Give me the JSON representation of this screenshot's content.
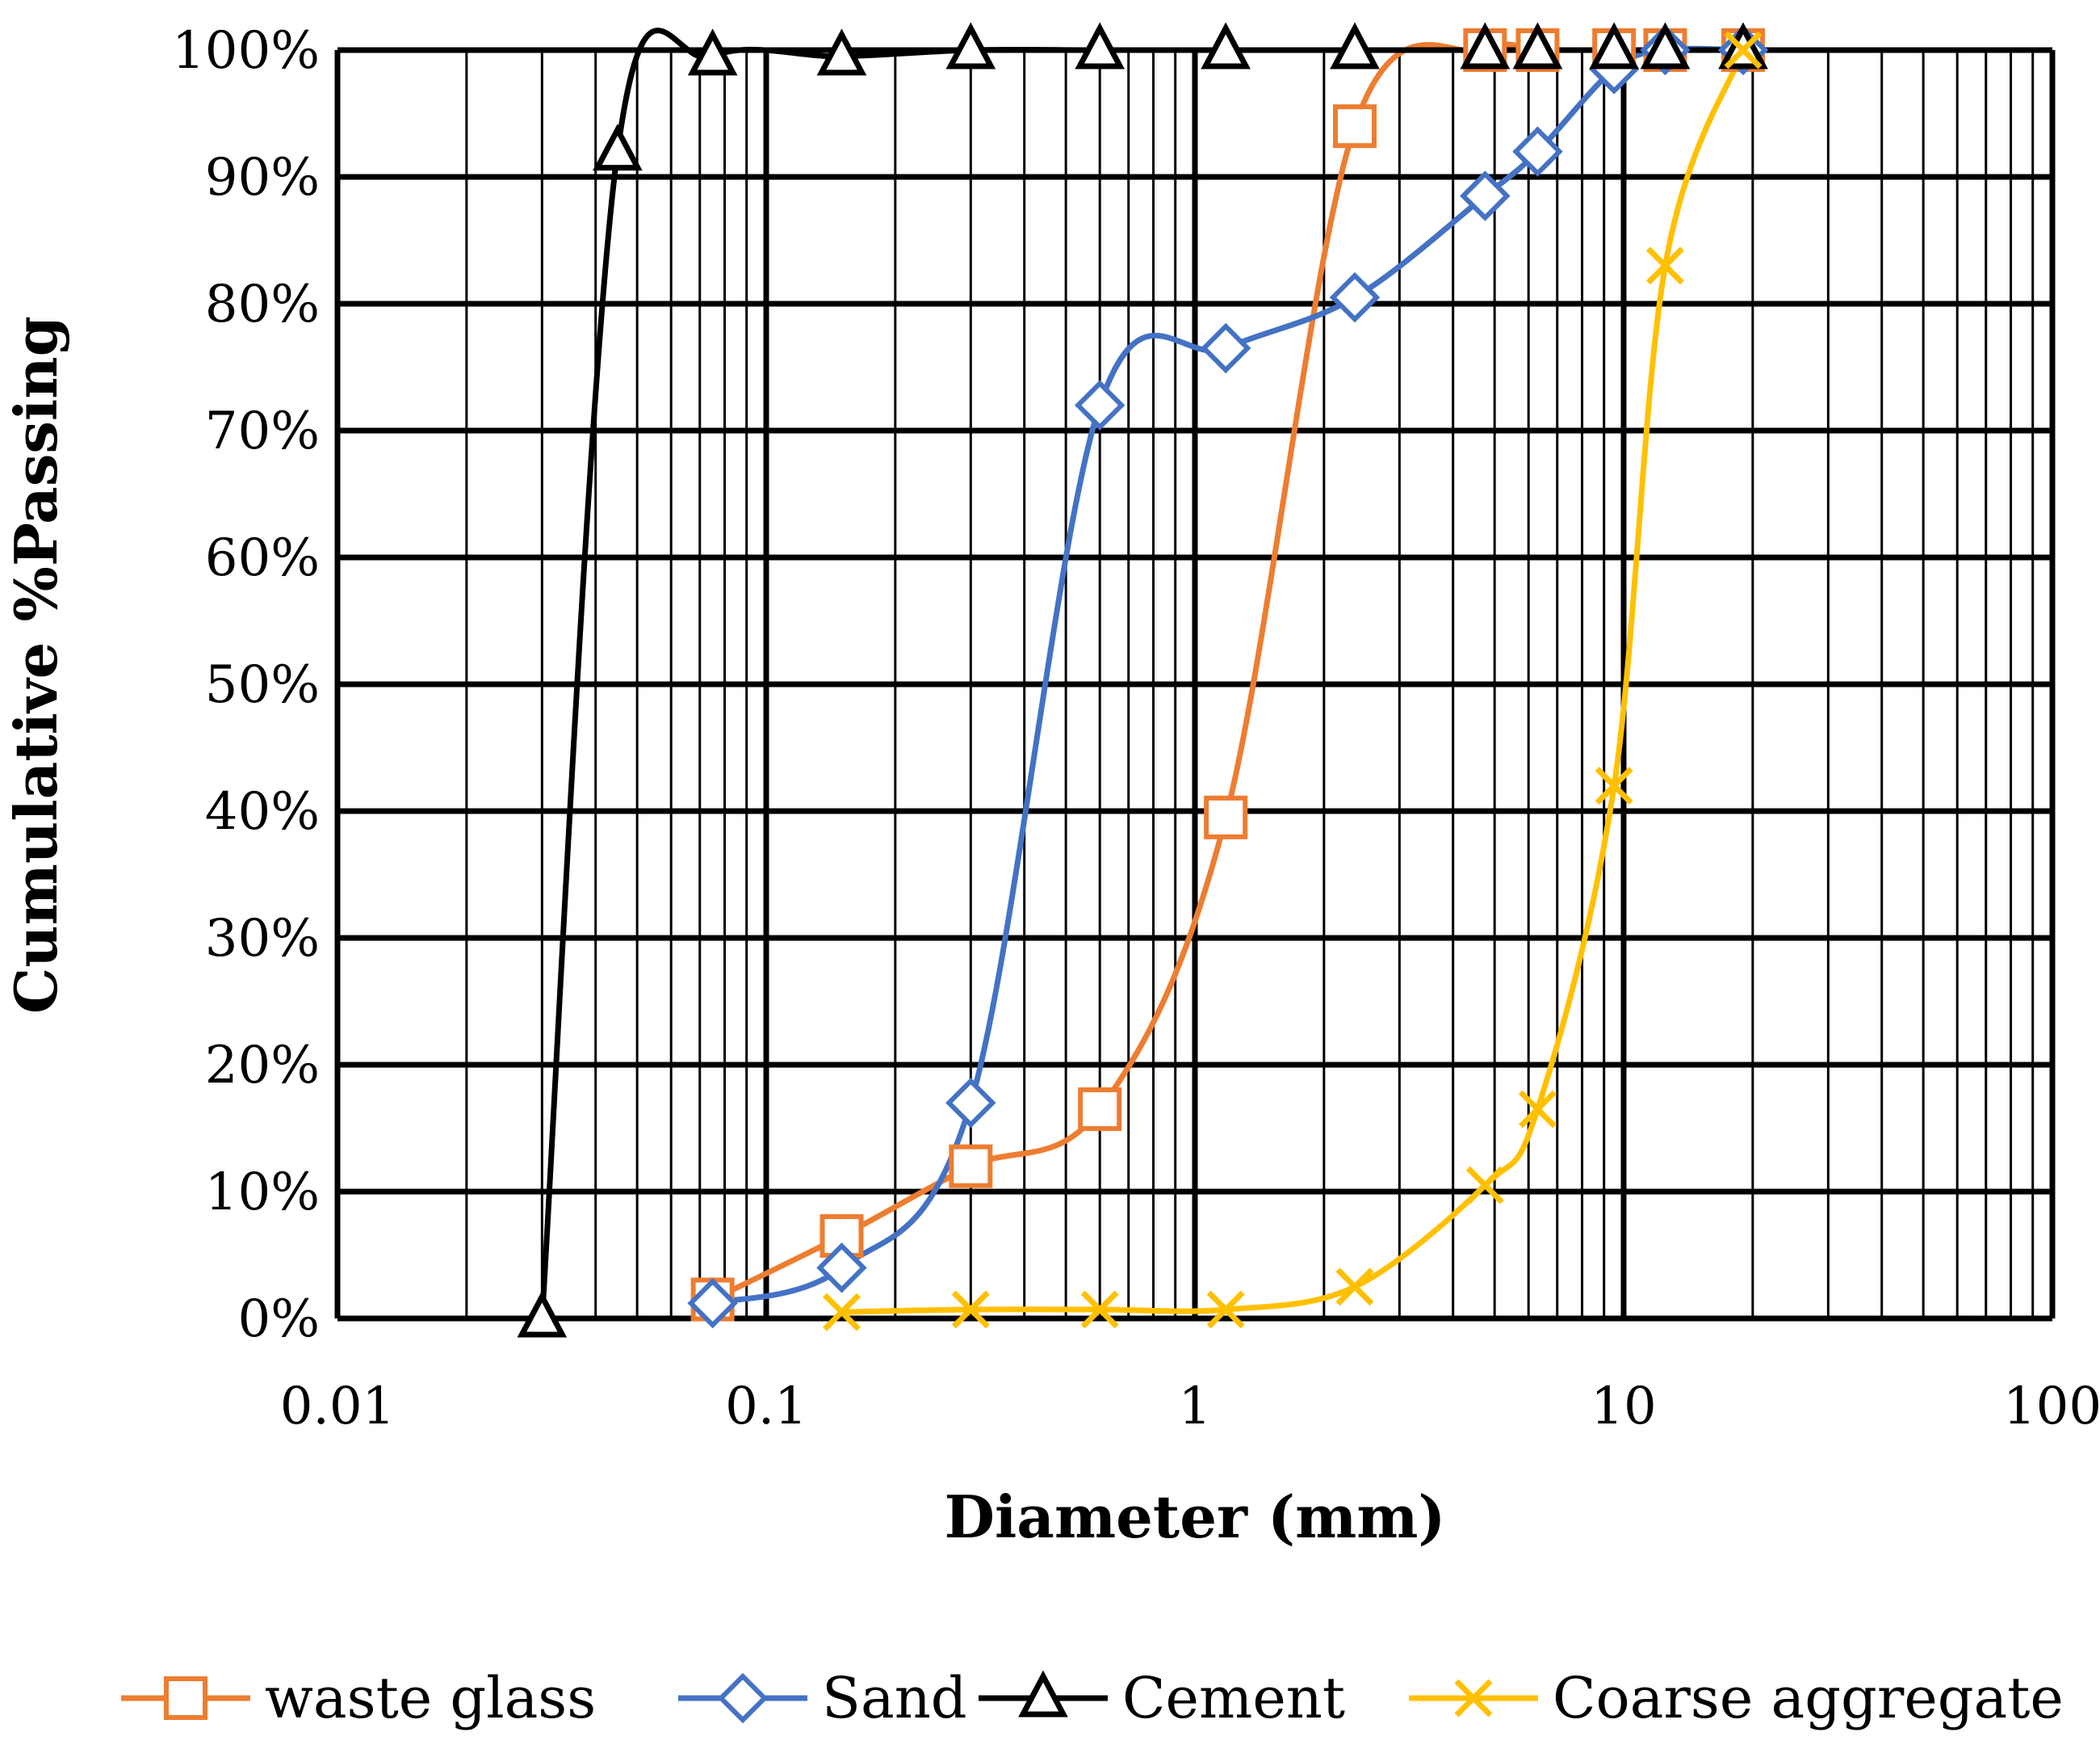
{
  "chart_data": {
    "type": "line",
    "title": "",
    "xlabel": "Diameter (mm)",
    "ylabel": "Cumulative %Passing",
    "x_scale": "log",
    "xlim": [
      0.01,
      100
    ],
    "ylim": [
      0,
      100
    ],
    "x_ticks": [
      0.01,
      0.1,
      1,
      10,
      100
    ],
    "x_tick_labels": [
      "0.01",
      "0.1",
      "1",
      "10",
      "100"
    ],
    "y_ticks": [
      0,
      10,
      20,
      30,
      40,
      50,
      60,
      70,
      80,
      90,
      100
    ],
    "y_tick_labels": [
      "0%",
      "10%",
      "20%",
      "30%",
      "40%",
      "50%",
      "60%",
      "70%",
      "80%",
      "90%",
      "100%"
    ],
    "grid": true,
    "legend_position": "bottom",
    "series": [
      {
        "name": "waste glass",
        "color": "#ED7D31",
        "marker": "square",
        "x": [
          0.075,
          0.15,
          0.3,
          0.6,
          1.18,
          2.36,
          4.75,
          6.3,
          9.5,
          12.5,
          19
        ],
        "y": [
          1.5,
          6.5,
          12,
          16.5,
          39.5,
          94,
          100,
          100,
          100,
          100,
          100
        ]
      },
      {
        "name": "Sand",
        "color": "#4472C4",
        "marker": "diamond",
        "x": [
          0.075,
          0.15,
          0.3,
          0.6,
          1.18,
          2.36,
          4.75,
          6.3,
          9.5,
          12.5,
          19
        ],
        "y": [
          1.2,
          4,
          17,
          72,
          76.5,
          80.5,
          88.5,
          92,
          98.5,
          100,
          100
        ]
      },
      {
        "name": "Cement",
        "color": "#000000",
        "marker": "triangle",
        "x": [
          0.03,
          0.045,
          0.075,
          0.15,
          0.3,
          0.6,
          1.18,
          2.36,
          4.75,
          6.3,
          9.5,
          12.5,
          19
        ],
        "y": [
          0,
          92,
          99.5,
          99.5,
          100,
          100,
          100,
          100,
          100,
          100,
          100,
          100,
          100
        ]
      },
      {
        "name": "Coarse aggregate",
        "color": "#FFC000",
        "marker": "x",
        "x": [
          0.15,
          0.3,
          0.6,
          1.18,
          2.36,
          4.75,
          6.3,
          9.5,
          12.5,
          19
        ],
        "y": [
          0.5,
          0.7,
          0.7,
          0.7,
          2.5,
          10.5,
          16.5,
          42,
          83,
          100
        ]
      }
    ]
  }
}
